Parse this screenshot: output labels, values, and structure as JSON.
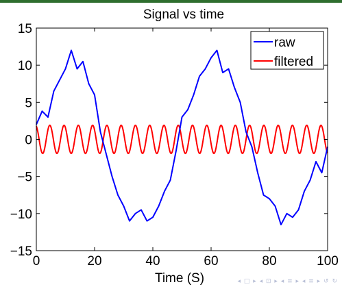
{
  "chart_data": {
    "type": "line",
    "title": "Signal vs time",
    "xlabel": "Time (S)",
    "ylabel": "",
    "xlim": [
      0,
      100
    ],
    "ylim": [
      -15,
      15
    ],
    "xticks": [
      0,
      20,
      40,
      60,
      80,
      100
    ],
    "yticks": [
      -15,
      -10,
      -5,
      0,
      5,
      10,
      15
    ],
    "grid": false,
    "legend_position": "top-right",
    "series": [
      {
        "name": "raw",
        "color": "#0000ff",
        "x": [
          0,
          2,
          4,
          6,
          8,
          10,
          12,
          14,
          16,
          18,
          20,
          22,
          24,
          26,
          28,
          30,
          32,
          34,
          36,
          38,
          40,
          42,
          44,
          46,
          48,
          50,
          52,
          54,
          56,
          58,
          60,
          62,
          64,
          66,
          68,
          70,
          72,
          74,
          76,
          78,
          80,
          82,
          84,
          86,
          88,
          90,
          92,
          94,
          96,
          98,
          100
        ],
        "y": [
          2.0,
          3.8,
          3.0,
          6.5,
          8.0,
          9.5,
          12.0,
          9.5,
          10.5,
          7.5,
          6.0,
          1.0,
          -2.0,
          -5.0,
          -7.5,
          -9.0,
          -11.0,
          -10.0,
          -9.5,
          -11.0,
          -10.5,
          -9.0,
          -7.0,
          -5.5,
          -1.5,
          3.0,
          4.0,
          6.0,
          8.5,
          9.5,
          11.0,
          12.0,
          9.0,
          9.5,
          7.0,
          5.0,
          1.0,
          -1.0,
          -4.5,
          -7.5,
          -8.0,
          -9.0,
          -11.5,
          -10.0,
          -10.5,
          -9.5,
          -7.0,
          -5.5,
          -3.0,
          -4.5,
          -1.0
        ]
      },
      {
        "name": "filtered",
        "color": "#ff0000",
        "amplitude": 1.9,
        "period": 4.9,
        "phase_deg": 110
      }
    ]
  }
}
